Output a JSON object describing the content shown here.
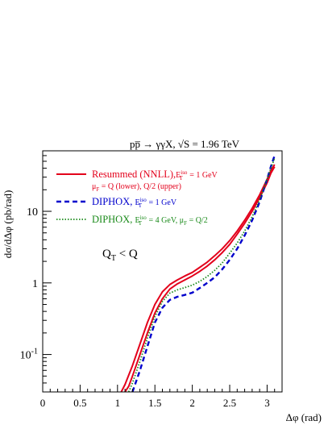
{
  "chart_data": {
    "type": "line",
    "title": "pp̅ → γγX,  √S = 1.96 TeV",
    "xlabel": "Δφ (rad)",
    "ylabel": "dσ/dΔφ (pb/rad)",
    "xlim": [
      0,
      3.2
    ],
    "ylim": [
      0.03,
      70
    ],
    "yscale": "log",
    "x_ticks": [
      0,
      0.5,
      1,
      1.5,
      2,
      2.5,
      3
    ],
    "x_tick_labels": [
      "0",
      "0.5",
      "1",
      "1.5",
      "2",
      "2.5",
      "3"
    ],
    "y_ticks": [
      0.1,
      1,
      10
    ],
    "y_tick_labels": [
      {
        "base": "10",
        "exp": "-1"
      },
      {
        "base": "1",
        "exp": ""
      },
      {
        "base": "10",
        "exp": ""
      }
    ],
    "annotation": {
      "base": "Q",
      "sub": "T",
      "rest": " < Q"
    },
    "legend": [
      {
        "main": "Resummed (NNLL),",
        "eq_base": "E",
        "eq_sub": "T",
        "eq_sup": "iso",
        "eq_rest": " = 1 GeV",
        "line2_base": "μ",
        "line2_sub": "F",
        "line2_rest": " = Q (lower), Q/2 (upper)",
        "color": "#e3001b",
        "style": "solid"
      },
      {
        "main": "DIPHOX, ",
        "eq_base": "E",
        "eq_sub": "T",
        "eq_sup": "iso",
        "eq_rest": " = 1 GeV",
        "color": "#0000cc",
        "style": "dashed"
      },
      {
        "main": "DIPHOX, ",
        "eq_base": "E",
        "eq_sub": "T",
        "eq_sup": "iso",
        "eq_rest": " = 4 GeV, ",
        "mu_base": "μ",
        "mu_sub": "F",
        "mu_rest": " = Q/2",
        "color": "#1a8a1a",
        "style": "dotted"
      }
    ],
    "series": [
      {
        "legend_index": 0,
        "color": "#e3001b",
        "style": "solid",
        "x": [
          1.05,
          1.1,
          1.2,
          1.3,
          1.4,
          1.5,
          1.6,
          1.7,
          1.8,
          1.9,
          2.0,
          2.1,
          2.2,
          2.3,
          2.4,
          2.5,
          2.6,
          2.7,
          2.8,
          2.9,
          3.0,
          3.05,
          3.1
        ],
        "y": [
          0.03,
          0.038,
          0.07,
          0.14,
          0.28,
          0.5,
          0.75,
          0.95,
          1.1,
          1.25,
          1.4,
          1.65,
          1.95,
          2.4,
          3.0,
          3.9,
          5.3,
          7.5,
          11,
          17,
          28,
          37,
          45
        ]
      },
      {
        "legend_index": 0,
        "color": "#e3001b",
        "style": "solid",
        "x": [
          1.1,
          1.15,
          1.2,
          1.3,
          1.4,
          1.5,
          1.6,
          1.7,
          1.8,
          1.9,
          2.0,
          2.1,
          2.2,
          2.3,
          2.4,
          2.5,
          2.6,
          2.7,
          2.8,
          2.9,
          3.0,
          3.05,
          3.1
        ],
        "y": [
          0.03,
          0.036,
          0.05,
          0.1,
          0.2,
          0.38,
          0.6,
          0.82,
          0.97,
          1.1,
          1.25,
          1.45,
          1.72,
          2.1,
          2.65,
          3.45,
          4.8,
          6.8,
          10,
          15.5,
          25,
          34,
          42
        ]
      },
      {
        "legend_index": 1,
        "color": "#0000cc",
        "style": "dashed",
        "x": [
          1.2,
          1.3,
          1.4,
          1.5,
          1.6,
          1.7,
          1.8,
          1.9,
          2.0,
          2.1,
          2.2,
          2.3,
          2.4,
          2.5,
          2.6,
          2.7,
          2.8,
          2.9,
          3.0,
          3.05,
          3.1
        ],
        "y": [
          0.03,
          0.06,
          0.13,
          0.28,
          0.45,
          0.58,
          0.64,
          0.68,
          0.73,
          0.85,
          1.0,
          1.2,
          1.55,
          2.1,
          3.0,
          4.6,
          7.5,
          13.5,
          28,
          42,
          60
        ]
      },
      {
        "legend_index": 2,
        "color": "#1a8a1a",
        "style": "dotted",
        "x": [
          1.15,
          1.2,
          1.3,
          1.4,
          1.5,
          1.6,
          1.7,
          1.8,
          1.9,
          2.0,
          2.1,
          2.2,
          2.3,
          2.4,
          2.5,
          2.6,
          2.7,
          2.8,
          2.9,
          3.0,
          3.05,
          3.1
        ],
        "y": [
          0.03,
          0.04,
          0.08,
          0.17,
          0.34,
          0.55,
          0.72,
          0.8,
          0.86,
          0.93,
          1.05,
          1.23,
          1.5,
          1.9,
          2.6,
          3.6,
          5.3,
          8.4,
          14.5,
          28,
          40,
          55
        ]
      }
    ]
  }
}
